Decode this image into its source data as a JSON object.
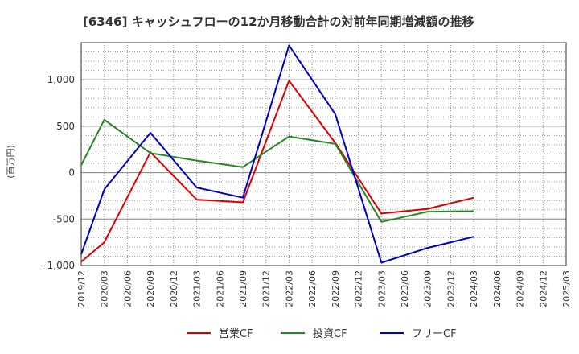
{
  "chart_data": {
    "type": "line",
    "title": "[6346]  キャッシュフローの12か月移動合計の対前年同期増減額の推移",
    "ylabel": "(百万円)",
    "xlabel": "",
    "ylim": [
      -1000,
      1400
    ],
    "yticks": [
      -1000,
      -500,
      0,
      500,
      1000
    ],
    "ytick_labels": [
      "-1,000",
      "-500",
      "0",
      "500",
      "1,000"
    ],
    "x_categories": [
      "2019/12",
      "2020/03",
      "2020/06",
      "2020/09",
      "2020/12",
      "2021/03",
      "2021/06",
      "2021/09",
      "2021/12",
      "2022/03",
      "2022/06",
      "2022/09",
      "2022/12",
      "2023/03",
      "2023/06",
      "2023/09",
      "2023/12",
      "2024/03",
      "2024/06",
      "2024/09",
      "2024/12",
      "2025/03"
    ],
    "grid": true,
    "legend_position": "bottom",
    "series": [
      {
        "name": "営業CF",
        "color": "#dd0000",
        "points": [
          [
            0,
            -960
          ],
          [
            1,
            -750
          ],
          [
            3,
            220
          ],
          [
            5,
            -290
          ],
          [
            7,
            -320
          ],
          [
            9,
            990
          ],
          [
            11,
            320
          ],
          [
            13,
            -440
          ],
          [
            15,
            -390
          ],
          [
            17,
            -270
          ]
        ]
      },
      {
        "name": "投資CF",
        "color": "#228822",
        "points": [
          [
            0,
            80
          ],
          [
            1,
            570
          ],
          [
            3,
            210
          ],
          [
            5,
            130
          ],
          [
            7,
            60
          ],
          [
            9,
            390
          ],
          [
            11,
            310
          ],
          [
            13,
            -530
          ],
          [
            15,
            -420
          ],
          [
            17,
            -415
          ]
        ]
      },
      {
        "name": "フリーCF",
        "color": "#0000cc",
        "points": [
          [
            0,
            -880
          ],
          [
            1,
            -180
          ],
          [
            3,
            430
          ],
          [
            5,
            -160
          ],
          [
            7,
            -270
          ],
          [
            9,
            1370
          ],
          [
            11,
            630
          ],
          [
            13,
            -970
          ],
          [
            15,
            -810
          ],
          [
            17,
            -690
          ]
        ]
      }
    ]
  }
}
